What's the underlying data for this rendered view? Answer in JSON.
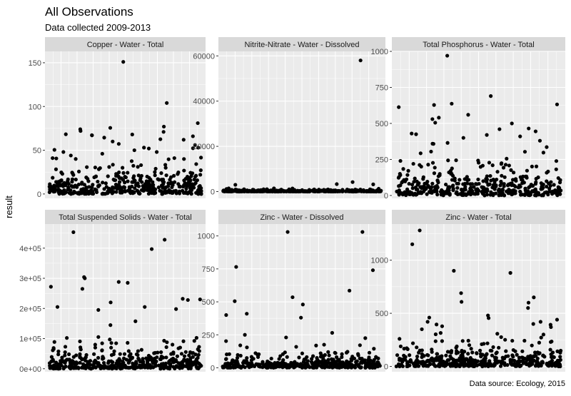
{
  "title": "All Observations",
  "subtitle": "Data collected 2009-2013",
  "ylabel": "result",
  "caption": "Data source: Ecology, 2015",
  "colors": {
    "panel_bg": "#ebebeb",
    "strip_bg": "#d9d9d9",
    "grid": "#ffffff",
    "point": "#000000",
    "text": "#1a1a1a",
    "tick_text": "#4d4d4d"
  },
  "chart_data": [
    {
      "type": "scatter",
      "panel": "Copper - Water - Total",
      "ylim": [
        -5,
        163
      ],
      "y_ticks": [
        0,
        50,
        100,
        150
      ],
      "y_tick_labels": [
        "0",
        "50",
        "100",
        "150"
      ],
      "n_points": 420,
      "points": [
        [
          0.487,
          151
        ],
        [
          0.773,
          104
        ],
        [
          0.204,
          74
        ],
        [
          0.206,
          72
        ],
        [
          0.977,
          81
        ],
        [
          0.754,
          77
        ],
        [
          0.752,
          71
        ],
        [
          0.945,
          66
        ],
        [
          0.281,
          67
        ],
        [
          0.546,
          68
        ],
        [
          0.093,
          48
        ],
        [
          0.959,
          56
        ],
        [
          0.98,
          53
        ],
        [
          0.655,
          52
        ],
        [
          0.884,
          62
        ],
        [
          0.417,
          60
        ],
        [
          0.623,
          53
        ],
        [
          0.56,
          50
        ],
        [
          0.349,
          46
        ],
        [
          0.707,
          48
        ],
        [
          0.142,
          44
        ],
        [
          0.022,
          41
        ],
        [
          0.823,
          41
        ],
        [
          0.886,
          40
        ]
      ]
    },
    {
      "type": "scatter",
      "panel": "Nitrite-Nitrate - Water - Dissolved",
      "ylim": [
        -3000,
        62000
      ],
      "y_ticks": [
        0,
        20000,
        40000,
        60000
      ],
      "y_tick_labels": [
        "0",
        "20000",
        "40000",
        "60000"
      ],
      "n_points": 420,
      "points": [
        [
          0.87,
          58000
        ],
        [
          0.82,
          4200
        ],
        [
          0.72,
          3300
        ],
        [
          0.08,
          3000
        ],
        [
          0.95,
          3200
        ]
      ]
    },
    {
      "type": "scatter",
      "panel": "Total Phosphorus - Water - Total",
      "ylim": [
        -20,
        1000
      ],
      "y_ticks": [
        0,
        250,
        500,
        750,
        1000
      ],
      "y_tick_labels": [
        "0",
        "250",
        "500",
        "750",
        "1000"
      ],
      "n_points": 420,
      "points": [
        [
          0.31,
          970
        ],
        [
          0.574,
          690
        ],
        [
          0.016,
          613
        ],
        [
          0.23,
          628
        ],
        [
          0.337,
          637
        ],
        [
          0.976,
          632
        ],
        [
          0.22,
          530
        ],
        [
          0.259,
          540
        ],
        [
          0.437,
          560
        ],
        [
          0.702,
          500
        ],
        [
          0.804,
          465
        ],
        [
          0.846,
          445
        ],
        [
          0.094,
          430
        ],
        [
          0.627,
          460
        ],
        [
          0.55,
          420
        ],
        [
          0.408,
          400
        ],
        [
          0.121,
          425
        ],
        [
          0.237,
          505
        ],
        [
          0.752,
          410
        ],
        [
          0.872,
          380
        ]
      ]
    },
    {
      "type": "scatter",
      "panel": "Total Suspended Solids - Water - Total",
      "ylim": [
        -10000,
        480000
      ],
      "y_ticks": [
        0,
        100000,
        200000,
        300000,
        400000
      ],
      "y_tick_labels": [
        "0e+00",
        "1e+05",
        "2e+05",
        "3e+05",
        "4e+05"
      ],
      "n_points": 420,
      "points": [
        [
          0.159,
          453000
        ],
        [
          0.759,
          428000
        ],
        [
          0.674,
          397000
        ],
        [
          0.229,
          304000
        ],
        [
          0.234,
          300000
        ],
        [
          0.218,
          265000
        ],
        [
          0.457,
          288000
        ],
        [
          0.516,
          285000
        ],
        [
          0.011,
          272000
        ],
        [
          0.878,
          232000
        ],
        [
          0.992,
          230000
        ],
        [
          0.912,
          228000
        ],
        [
          0.404,
          220000
        ],
        [
          0.628,
          205000
        ],
        [
          0.054,
          205000
        ],
        [
          0.834,
          198000
        ],
        [
          0.323,
          195000
        ]
      ]
    },
    {
      "type": "scatter",
      "panel": "Zinc - Water - Dissolved",
      "ylim": [
        -30,
        1090
      ],
      "y_ticks": [
        0,
        250,
        500,
        750,
        1000
      ],
      "y_tick_labels": [
        "0",
        "250",
        "500",
        "750",
        "1000"
      ],
      "n_points": 420,
      "points": [
        [
          0.41,
          1030
        ],
        [
          0.882,
          1030
        ],
        [
          0.085,
          765
        ],
        [
          0.948,
          740
        ],
        [
          0.8,
          585
        ],
        [
          0.441,
          535
        ],
        [
          0.076,
          505
        ],
        [
          0.506,
          480
        ],
        [
          0.022,
          400
        ],
        [
          0.152,
          410
        ],
        [
          0.494,
          380
        ],
        [
          0.691,
          265
        ],
        [
          0.111,
          170
        ],
        [
          0.9,
          225
        ],
        [
          0.14,
          250
        ],
        [
          0.4,
          230
        ]
      ]
    },
    {
      "type": "scatter",
      "panel": "Zinc - Water - Total",
      "ylim": [
        -50,
        1340
      ],
      "y_ticks": [
        0,
        500,
        1000
      ],
      "y_tick_labels": [
        "0",
        "500",
        "1000"
      ],
      "n_points": 420,
      "points": [
        [
          0.143,
          1280
        ],
        [
          0.098,
          1150
        ],
        [
          0.35,
          900
        ],
        [
          0.693,
          880
        ],
        [
          0.394,
          690
        ],
        [
          0.835,
          650
        ],
        [
          0.803,
          600
        ],
        [
          0.8,
          550
        ],
        [
          0.557,
          480
        ],
        [
          0.561,
          455
        ],
        [
          0.201,
          460
        ],
        [
          0.191,
          420
        ],
        [
          0.245,
          395
        ],
        [
          0.27,
          315
        ],
        [
          0.876,
          420
        ],
        [
          0.832,
          400
        ],
        [
          0.976,
          440
        ],
        [
          0.939,
          370
        ],
        [
          0.156,
          350
        ]
      ]
    }
  ]
}
